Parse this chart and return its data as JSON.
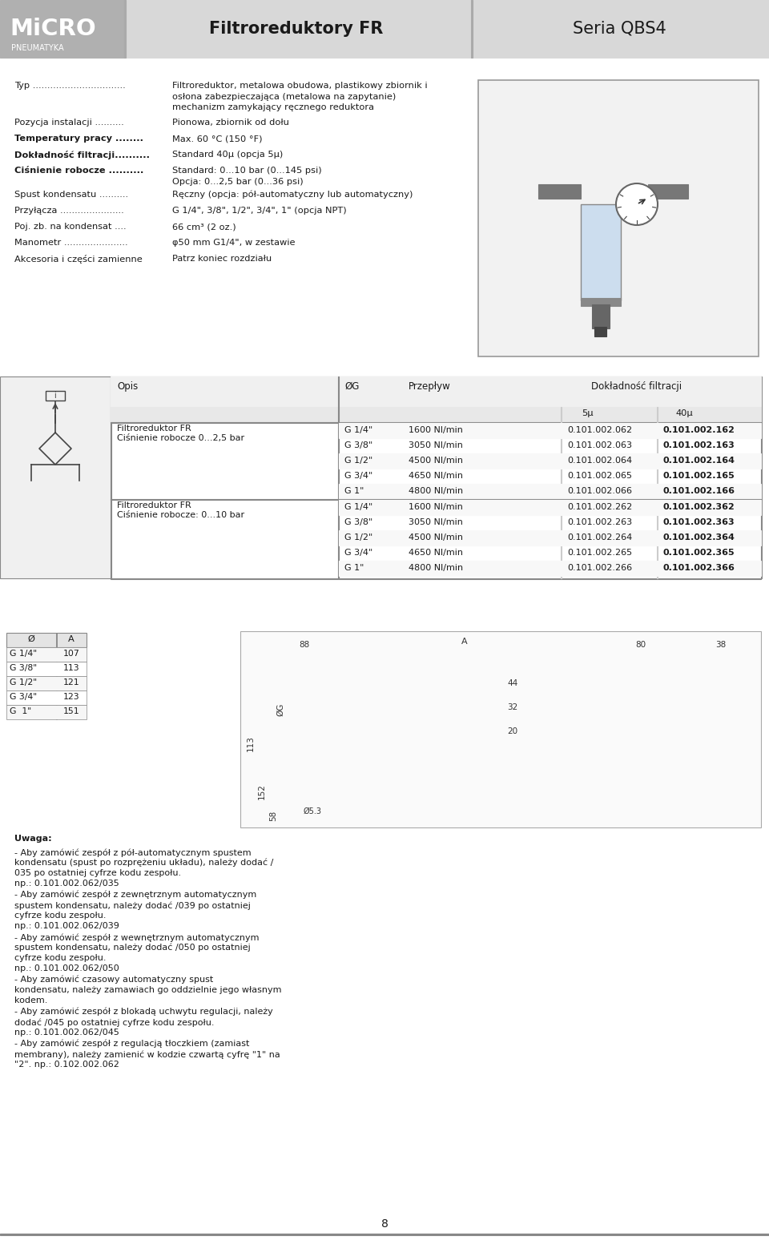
{
  "title_left": "Filtroreduktory FR",
  "title_right": "Seria QBS4",
  "logo_text1": "MiCRO",
  "logo_text2": "PNEUMATYKA",
  "header_bg": "#d8d8d8",
  "logo_bg": "#b0b0b0",
  "white": "#ffffff",
  "black": "#1a1a1a",
  "specs": [
    [
      "Typ ................................",
      "Filtroreduktor, metalowa obudowa, plastikowy zbiornik i\nosłona zabezpieczająca (metalowa na zapytanie)\nmechanizm zamykający ręcznego reduktora"
    ],
    [
      "Pozycja instalacji ..........",
      "Pionowa, zbiornik od dołu"
    ],
    [
      "Temperatury pracy ........",
      "Max. 60 °C (150 °F)"
    ],
    [
      "Dokładność filtracji..........",
      "Standard 40μ (opcja 5μ)"
    ],
    [
      "Ciśnienie robocze ..........",
      "Standard: 0...10 bar (0...145 psi)\nOpcja: 0...2,5 bar (0...36 psi)"
    ],
    [
      "Spust kondensatu ..........",
      "Ręczny (opcja: pół-automatyczny lub automatyczny)"
    ],
    [
      "Przyłącza ......................",
      "G 1/4\", 3/8\", 1/2\", 3/4\", 1\" (opcja NPT)"
    ],
    [
      "Poj. zb. na kondensat ....",
      "66 cm³ (2 oz.)"
    ],
    [
      "Manometr ......................",
      "φ50 mm G1/4\", w zestawie"
    ],
    [
      "Akcesoria i części zamienne",
      "Patrz koniec rozdziału"
    ]
  ],
  "table_row1_name1": "Filtroreduktor FR",
  "table_row1_name2": "Ciśnienie robocze 0...2,5 bar",
  "table_row2_name1": "Filtroreduktor FR",
  "table_row2_name2": "Ciśnienie robocze: 0...10 bar",
  "table_data1": [
    [
      "G 1/4\"",
      "1600 Nl/min",
      "0.101.002.062",
      "0.101.002.162"
    ],
    [
      "G 3/8\"",
      "3050 Nl/min",
      "0.101.002.063",
      "0.101.002.163"
    ],
    [
      "G 1/2\"",
      "4500 Nl/min",
      "0.101.002.064",
      "0.101.002.164"
    ],
    [
      "G 3/4\"",
      "4650 Nl/min",
      "0.101.002.065",
      "0.101.002.165"
    ],
    [
      "G 1\"",
      "4800 Nl/min",
      "0.101.002.066",
      "0.101.002.166"
    ]
  ],
  "table_data2": [
    [
      "G 1/4\"",
      "1600 Nl/min",
      "0.101.002.262",
      "0.101.002.362"
    ],
    [
      "G 3/8\"",
      "3050 Nl/min",
      "0.101.002.263",
      "0.101.002.363"
    ],
    [
      "G 1/2\"",
      "4500 Nl/min",
      "0.101.002.264",
      "0.101.002.364"
    ],
    [
      "G 3/4\"",
      "4650 Nl/min",
      "0.101.002.265",
      "0.101.002.365"
    ],
    [
      "G 1\"",
      "4800 Nl/min",
      "0.101.002.266",
      "0.101.002.366"
    ]
  ],
  "size_table_data": [
    [
      "G 1/4\"",
      "107"
    ],
    [
      "G 3/8\"",
      "113"
    ],
    [
      "G 1/2\"",
      "121"
    ],
    [
      "G 3/4\"",
      "123"
    ],
    [
      "G  1\"",
      "151"
    ]
  ],
  "notes_title": "Uwaga:",
  "notes": [
    [
      "- Aby zamówić zespół z ",
      "pół-automatycznym spustem\nkondensatu",
      " (spust po rozprężeniu układu), należy dodać /\n035 po ostatniej cyfrze kodu zespołu.\nnp.: 0.101.002.062/035"
    ],
    [
      "- Aby zamówić zespół z ",
      "zewnętrznym automatycznym\nspustem kondensatu",
      ", należy dodać /039 po ostatniej\ncyfrze kodu zespołu.\nnp.: 0.101.002.062/039"
    ],
    [
      "- Aby zamówić zespół z ",
      "wewnętrznym automatycznym\nspustem kondensatu",
      ", należy dodać /050 po ostatniej\ncyfrze kodu zespołu.\nnp.: 0.101.002.062/050"
    ],
    [
      "- Aby zamówić ",
      "czasowy automatyczny spust\nkondensatu",
      ", należy zamawiach go oddzielnie jego własnym\nkodem."
    ],
    [
      "- Aby zamówić zespół z ",
      "blokadą uchwytu regulacji",
      ", należy\ndodać /045 po ostatniej cyfrze kodu zespołu.\nnp.: 0.101.002.062/045"
    ],
    [
      "- Aby zamówić zespół z ",
      "regulacją tłoczkiem",
      " (zamiast\nmembrany), należy zamienić w kodzie czwartą cyfrę \"1\" na\n\"2\". np.: 0.102.002.062"
    ]
  ],
  "page_number": "8"
}
